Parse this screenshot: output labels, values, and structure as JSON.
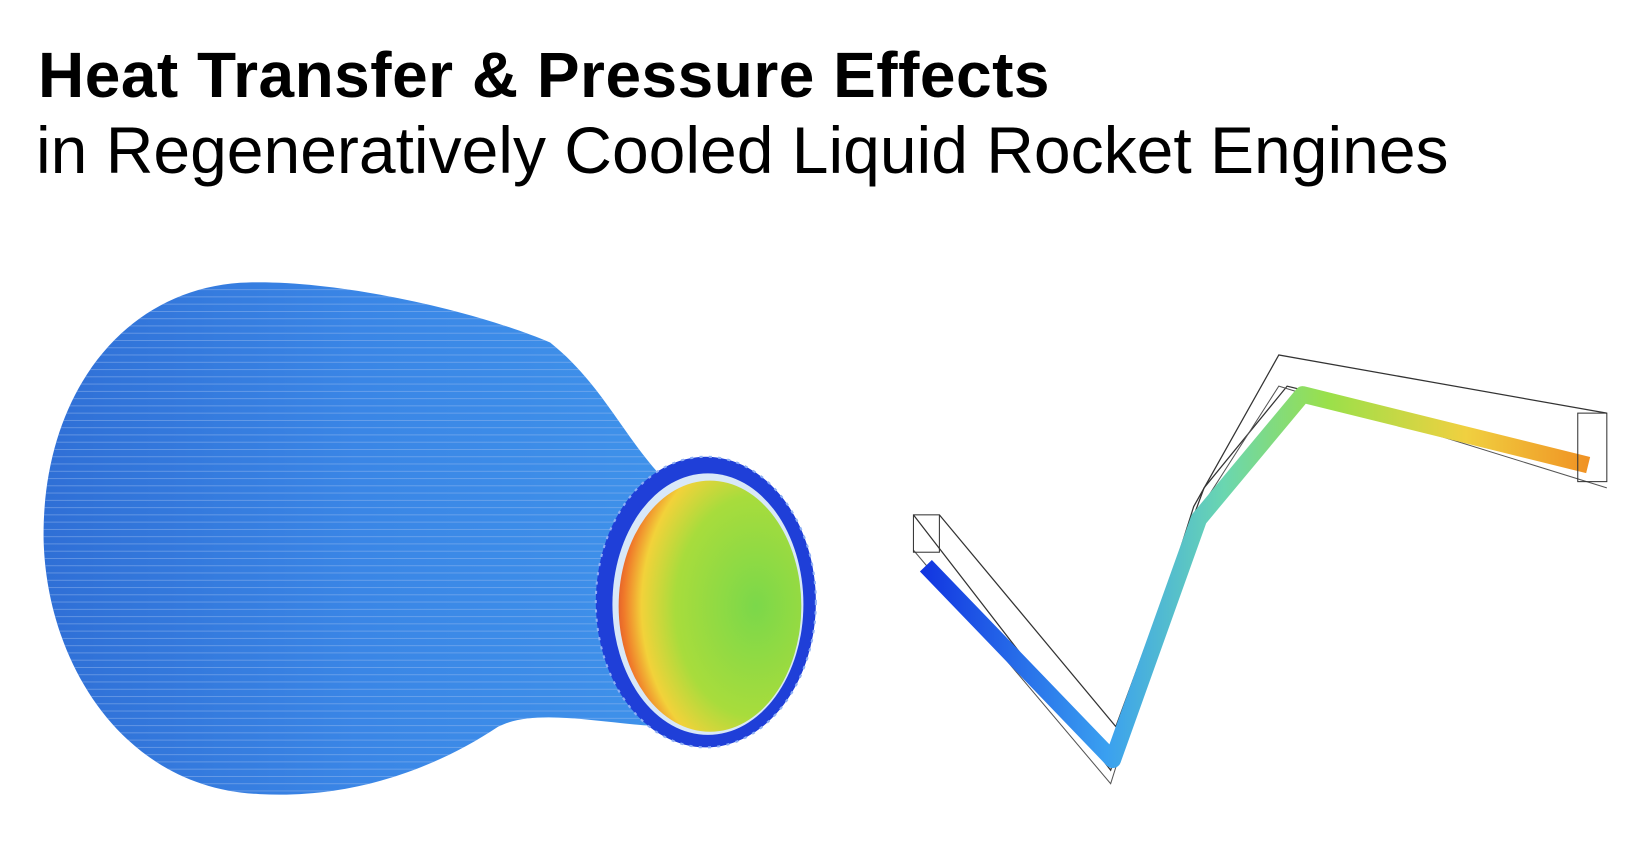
{
  "header": {
    "title": "Heat Transfer & Pressure Effects",
    "subtitle": "in Regeneratively Cooled Liquid Rocket Engines"
  }
}
